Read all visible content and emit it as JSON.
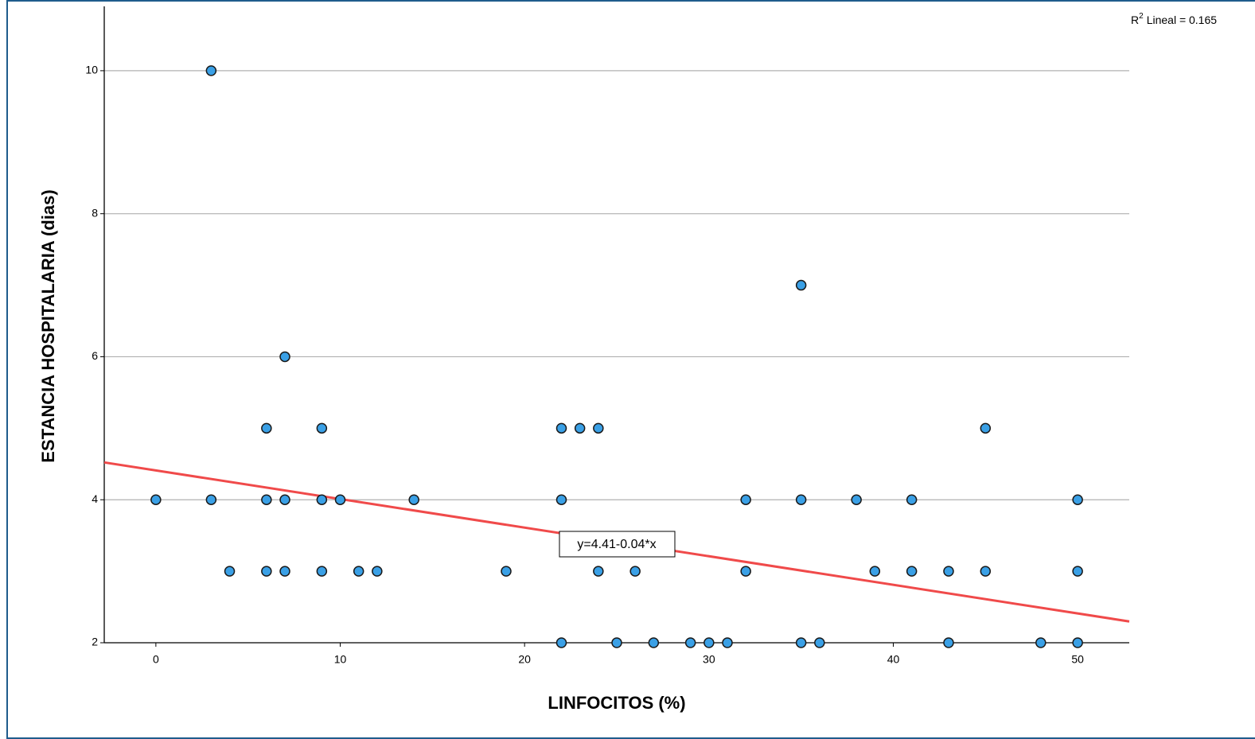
{
  "chart_data": {
    "type": "scatter",
    "x_label": "LINFOCITOS (%)",
    "y_label": "ESTANCIA HOSPITALARIA (dias)",
    "series": [
      {
        "color": "#3aa0e6",
        "x": [
          3,
          35,
          7,
          6,
          9,
          22,
          23,
          24,
          45,
          0,
          3,
          6,
          7,
          9,
          10,
          14,
          22,
          32,
          35,
          38,
          41,
          50,
          4,
          6,
          7,
          9,
          11,
          12,
          19,
          24,
          26,
          32,
          39,
          41,
          43,
          45,
          50,
          22,
          25,
          27,
          29,
          30,
          31,
          35,
          36,
          43,
          48,
          50
        ],
        "values": [
          10,
          7,
          6,
          5,
          5,
          5,
          5,
          5,
          5,
          4,
          4,
          4,
          4,
          4,
          4,
          4,
          4,
          4,
          4,
          4,
          4,
          4,
          3,
          3,
          3,
          3,
          3,
          3,
          3,
          3,
          3,
          3,
          3,
          3,
          3,
          3,
          3,
          2,
          2,
          2,
          2,
          2,
          2,
          2,
          2,
          2,
          2,
          2
        ]
      }
    ],
    "fit": {
      "intercept": 4.41,
      "slope": -0.04,
      "color": "#f04a4a",
      "label": "y=4.41-0.04*x"
    },
    "r2_label": {
      "base": "R",
      "sup": "2",
      "rest": "Lineal = 0.165"
    },
    "xlim": [
      -2.8,
      52.8
    ],
    "ylim": [
      2,
      10.9
    ],
    "xticks": [
      0,
      10,
      20,
      30,
      40,
      50
    ],
    "yticks": [
      2,
      4,
      6,
      8,
      10
    ],
    "grid": true
  }
}
